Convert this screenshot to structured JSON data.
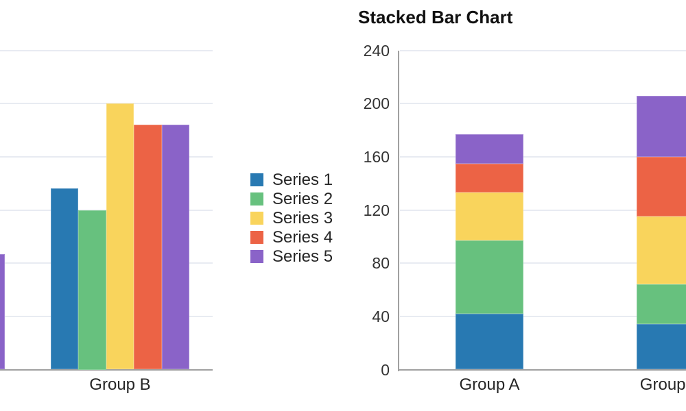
{
  "page": {
    "background": "#ffffff"
  },
  "colors": {
    "series1": "#2879b2",
    "series2": "#67c17e",
    "series3": "#f9d45c",
    "series4": "#ec6345",
    "series5": "#8a63c8",
    "gridline": "#e8ebf2",
    "axis": "#a0a0a0",
    "label_text": "#262626",
    "tick_text": "#333333",
    "title_text": "#111111"
  },
  "legend": {
    "items": [
      {
        "label": "Series 1",
        "color": "#2879b2"
      },
      {
        "label": "Series 2",
        "color": "#67c17e"
      },
      {
        "label": "Series 3",
        "color": "#f9d45c"
      },
      {
        "label": "Series 4",
        "color": "#ec6345"
      },
      {
        "label": "Series 5",
        "color": "#8a63c8"
      }
    ]
  },
  "chart_data": [
    {
      "type": "bar",
      "mode": "grouped",
      "title": "",
      "categories": [
        "Group A",
        "Group B"
      ],
      "visible_category_labels": [
        "Group B"
      ],
      "series": [
        {
          "name": "Series 1",
          "color": "#2879b2",
          "values": [
            null,
            136
          ]
        },
        {
          "name": "Series 2",
          "color": "#67c17e",
          "values": [
            null,
            120
          ]
        },
        {
          "name": "Series 3",
          "color": "#f9d45c",
          "values": [
            null,
            200
          ]
        },
        {
          "name": "Series 4",
          "color": "#ec6345",
          "values": [
            null,
            184
          ]
        },
        {
          "name": "Series 5",
          "color": "#8a63c8",
          "values": [
            87,
            184
          ]
        }
      ],
      "ylim": [
        0,
        240
      ],
      "grid_step": 40,
      "tick_labels_visible": false,
      "layout_note": "chart clipped by left screen edge; only last bar of Group A partially visible",
      "legend_position": "right-of-chart"
    },
    {
      "type": "bar",
      "mode": "stacked",
      "title": "Stacked Bar Chart",
      "categories": [
        "Group A",
        "Group B"
      ],
      "series": [
        {
          "name": "Series 1",
          "color": "#2879b2",
          "values": [
            42,
            34
          ]
        },
        {
          "name": "Series 2",
          "color": "#67c17e",
          "values": [
            55,
            30
          ]
        },
        {
          "name": "Series 3",
          "color": "#f9d45c",
          "values": [
            36,
            51
          ]
        },
        {
          "name": "Series 4",
          "color": "#ec6345",
          "values": [
            22,
            45
          ]
        },
        {
          "name": "Series 5",
          "color": "#8a63c8",
          "values": [
            22,
            46
          ]
        }
      ],
      "stack_totals": [
        177,
        206
      ],
      "ylim": [
        0,
        240
      ],
      "yticks": [
        0,
        40,
        80,
        120,
        160,
        200,
        240
      ],
      "grid_step": 40,
      "tick_labels_visible": true,
      "layout_note": "chart clipped by right screen edge; Group B bar and label partially visible",
      "grid": true
    }
  ]
}
